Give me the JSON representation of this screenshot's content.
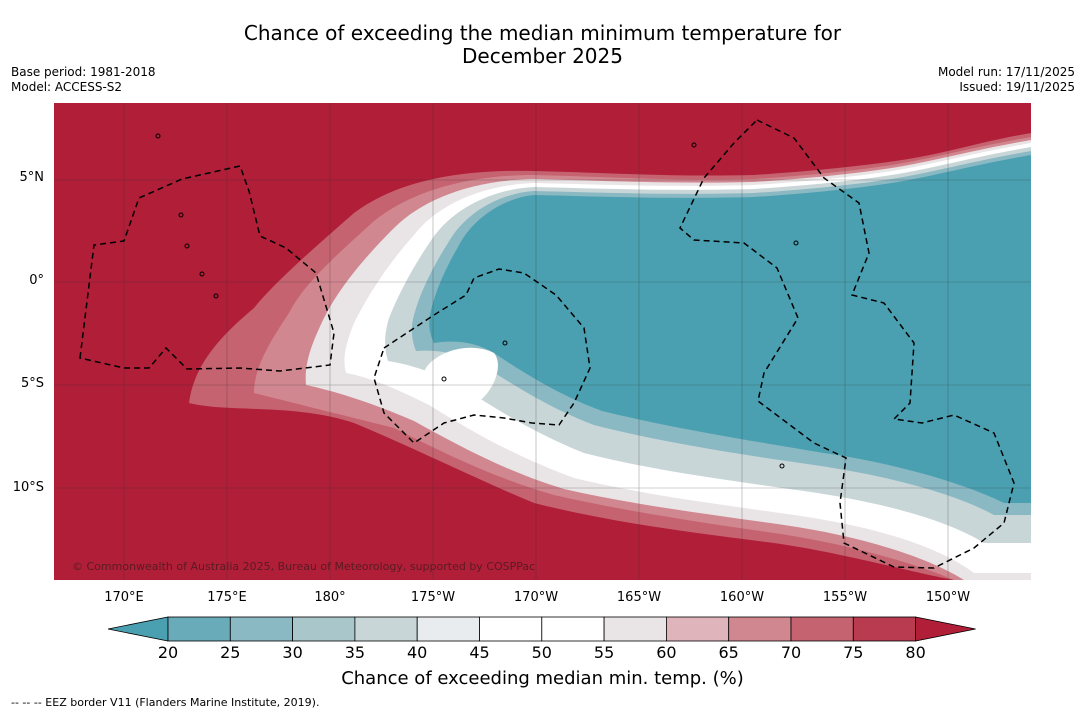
{
  "title_line1": "Chance of exceeding the median minimum temperature for",
  "title_line2": "December 2025",
  "base_period": "Base period: 1981-2018",
  "model": "Model: ACCESS-S2",
  "model_run": "Model run: 17/11/2025",
  "issued": "Issued: 19/11/2025",
  "copyright": "© Commonwealth of Australia 2025, Bureau of Meteorology, supported by COSPPac",
  "lat_labels": [
    "5°N",
    "0°",
    "5°S",
    "10°S"
  ],
  "lon_labels": [
    "170°E",
    "175°E",
    "180°",
    "175°W",
    "170°W",
    "165°W",
    "160°W",
    "155°W",
    "150°W"
  ],
  "colorbar": {
    "ticks": [
      "20",
      "25",
      "30",
      "35",
      "40",
      "45",
      "50",
      "55",
      "60",
      "65",
      "70",
      "75",
      "80"
    ],
    "colors": [
      "#4aa0b1",
      "#6aabb9",
      "#8ab8c3",
      "#a9c6cb",
      "#c9d6d8",
      "#e8ecee",
      "#ffffff",
      "#ffffff",
      "#e9e4e5",
      "#dfb5bb",
      "#d1878f",
      "#c56370",
      "#b83b4f",
      "#b01e38"
    ],
    "label": "Chance of exceeding median min. temp. (%)"
  },
  "footnote": "--  --  -- EEZ border V11 (Flanders Marine Institute, 2019).",
  "colors": {
    "warm": "#b01e38",
    "cool": "#4aa0b1"
  }
}
